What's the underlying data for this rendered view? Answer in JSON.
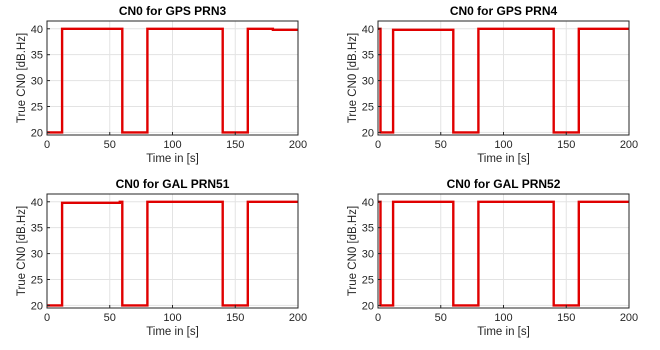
{
  "chart_data": [
    {
      "type": "line",
      "title": "CN0 for GPS PRN3",
      "xlabel": "Time in [s]",
      "ylabel": "True CN0 [dB.Hz]",
      "xlim": [
        0,
        200
      ],
      "ylim": [
        19.5,
        41.5
      ],
      "xticks": [
        0,
        50,
        100,
        150,
        200
      ],
      "yticks": [
        20,
        25,
        30,
        35,
        40
      ],
      "grid": true,
      "series": [
        {
          "color": "#e00000",
          "x": [
            0,
            12,
            12,
            60,
            60,
            80,
            80,
            140,
            140,
            160,
            160,
            180,
            180,
            200
          ],
          "y": [
            20,
            20,
            40,
            40,
            20,
            20,
            40,
            40,
            20,
            20,
            40,
            40,
            39.8,
            39.8
          ]
        }
      ]
    },
    {
      "type": "line",
      "title": "CN0 for GPS PRN4",
      "xlabel": "Time in [s]",
      "ylabel": "True CN0 [dB.Hz]",
      "xlim": [
        0,
        200
      ],
      "ylim": [
        19.5,
        41.5
      ],
      "xticks": [
        0,
        50,
        100,
        150,
        200
      ],
      "yticks": [
        20,
        25,
        30,
        35,
        40
      ],
      "grid": true,
      "series": [
        {
          "color": "#e00000",
          "x": [
            0,
            0,
            2,
            2,
            12,
            12,
            60,
            60,
            80,
            80,
            140,
            140,
            160,
            160,
            200
          ],
          "y": [
            40,
            40,
            40,
            20,
            20,
            39.8,
            39.8,
            20,
            20,
            40,
            40,
            20,
            20,
            40,
            40
          ]
        }
      ]
    },
    {
      "type": "line",
      "title": "CN0 for GAL PRN51",
      "xlabel": "Time in [s]",
      "ylabel": "True CN0 [dB.Hz]",
      "xlim": [
        0,
        200
      ],
      "ylim": [
        19.5,
        41.5
      ],
      "xticks": [
        0,
        50,
        100,
        150,
        200
      ],
      "yticks": [
        20,
        25,
        30,
        35,
        40
      ],
      "grid": true,
      "series": [
        {
          "color": "#e00000",
          "x": [
            0,
            12,
            12,
            58,
            58,
            60,
            60,
            80,
            80,
            140,
            140,
            160,
            160,
            200
          ],
          "y": [
            20,
            20,
            39.8,
            39.8,
            40,
            40,
            20,
            20,
            40,
            40,
            20,
            20,
            40,
            40
          ]
        }
      ]
    },
    {
      "type": "line",
      "title": "CN0 for GAL PRN52",
      "xlabel": "Time in [s]",
      "ylabel": "True CN0 [dB.Hz]",
      "xlim": [
        0,
        200
      ],
      "ylim": [
        19.5,
        41.5
      ],
      "xticks": [
        0,
        50,
        100,
        150,
        200
      ],
      "yticks": [
        20,
        25,
        30,
        35,
        40
      ],
      "grid": true,
      "series": [
        {
          "color": "#e00000",
          "x": [
            0,
            2,
            2,
            12,
            12,
            60,
            60,
            80,
            80,
            140,
            140,
            160,
            160,
            200
          ],
          "y": [
            40,
            40,
            20,
            20,
            40,
            40,
            20,
            20,
            40,
            40,
            20,
            20,
            40,
            40
          ]
        }
      ]
    }
  ]
}
